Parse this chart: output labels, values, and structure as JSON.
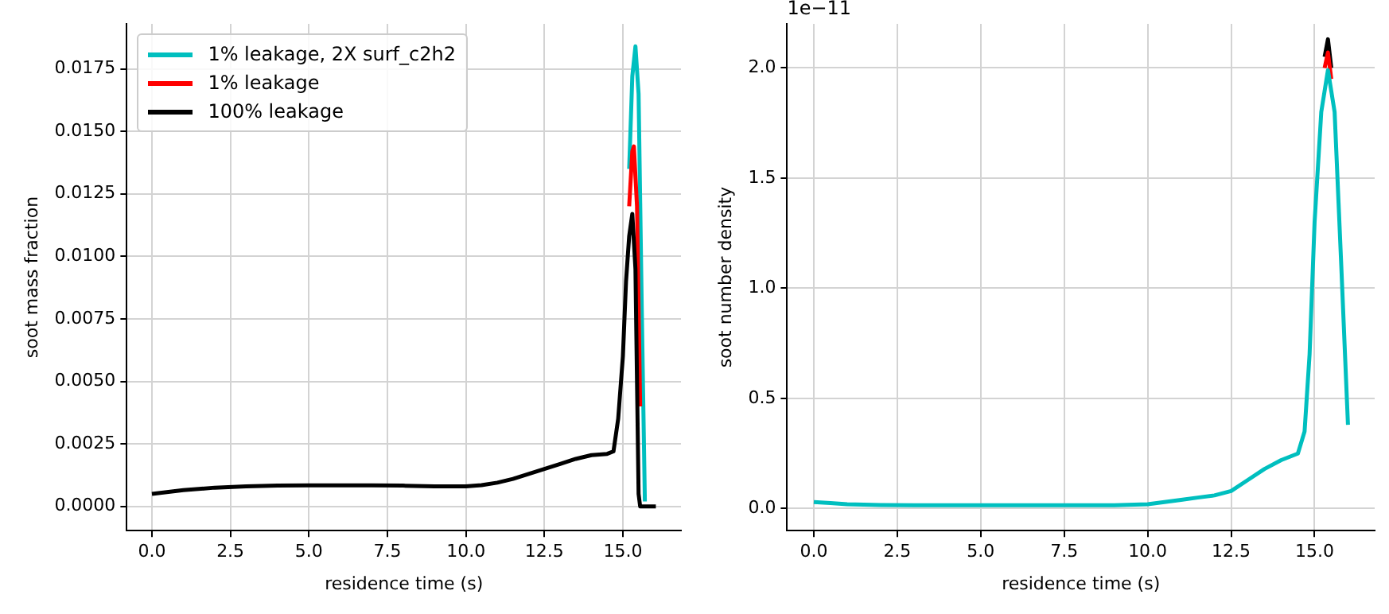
{
  "chart_data": [
    {
      "type": "line",
      "xlabel": "residence time (s)",
      "ylabel": "soot mass fraction",
      "legend": "top left",
      "grid": true,
      "xlim": [
        -0.8,
        16.85
      ],
      "ylim": [
        -0.00097,
        0.0193
      ],
      "xticks": [
        {
          "value": 0,
          "label": "0.0"
        },
        {
          "value": 2.5,
          "label": "2.5"
        },
        {
          "value": 5,
          "label": "5.0"
        },
        {
          "value": 7.5,
          "label": "7.5"
        },
        {
          "value": 10,
          "label": "10.0"
        },
        {
          "value": 12.5,
          "label": "12.5"
        },
        {
          "value": 15,
          "label": "15.0"
        }
      ],
      "yticks": [
        {
          "value": 0,
          "label": "0.0000"
        },
        {
          "value": 0.0025,
          "label": "0.0025"
        },
        {
          "value": 0.005,
          "label": "0.0050"
        },
        {
          "value": 0.0075,
          "label": "0.0075"
        },
        {
          "value": 0.01,
          "label": "0.0100"
        },
        {
          "value": 0.0125,
          "label": "0.0125"
        },
        {
          "value": 0.015,
          "label": "0.0150"
        },
        {
          "value": 0.0175,
          "label": "0.0175"
        }
      ],
      "series": [
        {
          "name": "1% leakage, 2X surf_c2h2",
          "color": "#00bfbf",
          "x": [
            15.2,
            15.3,
            15.4,
            15.5,
            15.6,
            15.7
          ],
          "values": [
            0.0135,
            0.0172,
            0.0184,
            0.0165,
            0.008,
            0.0002
          ]
        },
        {
          "name": "1% leakage",
          "color": "#ff0000",
          "x": [
            15.2,
            15.3,
            15.35,
            15.45,
            15.55
          ],
          "values": [
            0.012,
            0.0142,
            0.0144,
            0.012,
            0.004
          ]
        },
        {
          "name": "100% leakage",
          "color": "#000000",
          "x": [
            0,
            1,
            2,
            3,
            4,
            5,
            6,
            7,
            8,
            9,
            10,
            10.5,
            11,
            11.5,
            12,
            12.5,
            13,
            13.5,
            14,
            14.5,
            14.7,
            14.85,
            15.0,
            15.1,
            15.2,
            15.3,
            15.4,
            15.5,
            15.55,
            16.05
          ],
          "values": [
            0.0005,
            0.00065,
            0.00075,
            0.0008,
            0.00083,
            0.00084,
            0.00084,
            0.00084,
            0.00083,
            0.0008,
            0.0008,
            0.00085,
            0.00095,
            0.0011,
            0.0013,
            0.0015,
            0.0017,
            0.0019,
            0.00205,
            0.0021,
            0.0022,
            0.0035,
            0.006,
            0.009,
            0.0108,
            0.0117,
            0.0095,
            0.0005,
            0,
            0
          ]
        }
      ]
    },
    {
      "type": "line",
      "xlabel": "residence time (s)",
      "ylabel": "soot number density",
      "grid": true,
      "annotations": [
        "1e−11"
      ],
      "xlim": [
        -0.8,
        16.8
      ],
      "ylim": [
        -0.1,
        2.2
      ],
      "xticks": [
        {
          "value": 0,
          "label": "0.0"
        },
        {
          "value": 2.5,
          "label": "2.5"
        },
        {
          "value": 5,
          "label": "5.0"
        },
        {
          "value": 7.5,
          "label": "7.5"
        },
        {
          "value": 10,
          "label": "10.0"
        },
        {
          "value": 12.5,
          "label": "12.5"
        },
        {
          "value": 15,
          "label": "15.0"
        }
      ],
      "yticks": [
        {
          "value": 0,
          "label": "0.0"
        },
        {
          "value": 0.5,
          "label": "0.5"
        },
        {
          "value": 1,
          "label": "1.0"
        },
        {
          "value": 1.5,
          "label": "1.5"
        },
        {
          "value": 2,
          "label": "2.0"
        }
      ],
      "series": [
        {
          "color": "#000000",
          "x": [
            15.3,
            15.4,
            15.5
          ],
          "values": [
            2.05,
            2.13,
            2.0
          ]
        },
        {
          "color": "#ff0000",
          "x": [
            15.3,
            15.4,
            15.5
          ],
          "values": [
            2.0,
            2.07,
            1.95
          ]
        },
        {
          "color": "#00bfbf",
          "x": [
            0,
            0.5,
            1,
            2,
            3,
            5,
            7,
            9,
            10,
            10.5,
            11,
            11.5,
            12,
            12.5,
            13,
            13.5,
            14,
            14.5,
            14.7,
            14.85,
            15.0,
            15.2,
            15.4,
            15.6,
            15.8,
            16.0
          ],
          "values": [
            0.03,
            0.025,
            0.02,
            0.016,
            0.015,
            0.015,
            0.015,
            0.015,
            0.02,
            0.03,
            0.04,
            0.05,
            0.06,
            0.08,
            0.13,
            0.18,
            0.22,
            0.25,
            0.35,
            0.7,
            1.3,
            1.8,
            1.99,
            1.8,
            1.1,
            0.38
          ]
        }
      ]
    }
  ]
}
